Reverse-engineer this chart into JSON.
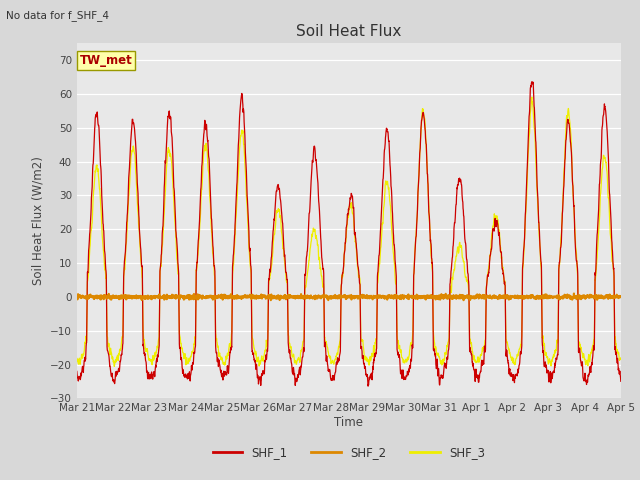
{
  "title": "Soil Heat Flux",
  "subtitle": "No data for f_SHF_4",
  "ylabel": "Soil Heat Flux (W/m2)",
  "xlabel": "Time",
  "legend_label": "TW_met",
  "series_labels": [
    "SHF_1",
    "SHF_2",
    "SHF_3"
  ],
  "series_colors": [
    "#cc0000",
    "#dd8800",
    "#eeee00"
  ],
  "hline_color": "#dd8800",
  "ylim": [
    -30,
    75
  ],
  "yticks": [
    -30,
    -20,
    -10,
    0,
    10,
    20,
    30,
    40,
    50,
    60,
    70
  ],
  "fig_facecolor": "#d8d8d8",
  "plot_facecolor": "#e8e8e8",
  "n_days": 15,
  "points_per_day": 144,
  "x_tick_labels": [
    "Mar 21",
    "Mar 22",
    "Mar 23",
    "Mar 24",
    "Mar 25",
    "Mar 26",
    "Mar 27",
    "Mar 28",
    "Mar 29",
    "Mar 30",
    "Mar 31",
    "Apr 1",
    "Apr 2",
    "Apr 3",
    "Apr 4",
    "Apr 5"
  ]
}
